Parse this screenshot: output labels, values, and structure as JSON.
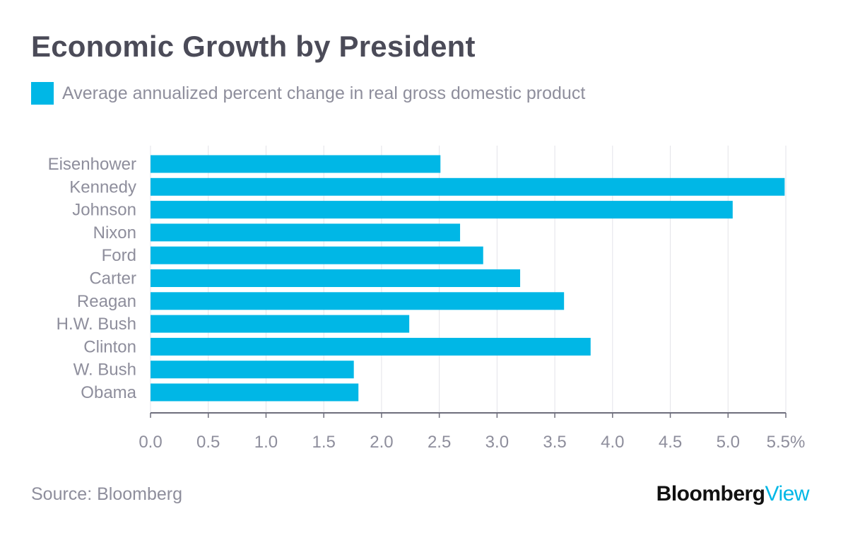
{
  "title": "Economic Growth by President",
  "legend": {
    "label": "Average annualized percent change in real gross domestic product",
    "color": "#00b7e6"
  },
  "source": "Source: Bloomberg",
  "brand": {
    "main": "Bloomberg",
    "accent": "View"
  },
  "chart_data": {
    "type": "bar",
    "orientation": "horizontal",
    "title": "Economic Growth by President",
    "xlabel": "",
    "ylabel": "",
    "categories": [
      "Eisenhower",
      "Kennedy",
      "Johnson",
      "Nixon",
      "Ford",
      "Carter",
      "Reagan",
      "H.W. Bush",
      "Clinton",
      "W. Bush",
      "Obama"
    ],
    "series": [
      {
        "name": "Average annualized percent change in real gross domestic product",
        "values": [
          2.51,
          5.49,
          5.04,
          2.68,
          2.88,
          3.2,
          3.58,
          2.24,
          3.81,
          1.76,
          1.8
        ]
      }
    ],
    "xlim": [
      0,
      5.5
    ],
    "xticks": [
      "0.0",
      "0.5",
      "1.0",
      "1.5",
      "2.0",
      "2.5",
      "3.0",
      "3.5",
      "4.0",
      "4.5",
      "5.0",
      "5.5%"
    ],
    "grid": true,
    "colors": {
      "bar": "#00b7e6",
      "grid": "#e3e3e8",
      "axis": "#6e6e7c",
      "label": "#8e8e9c"
    }
  }
}
